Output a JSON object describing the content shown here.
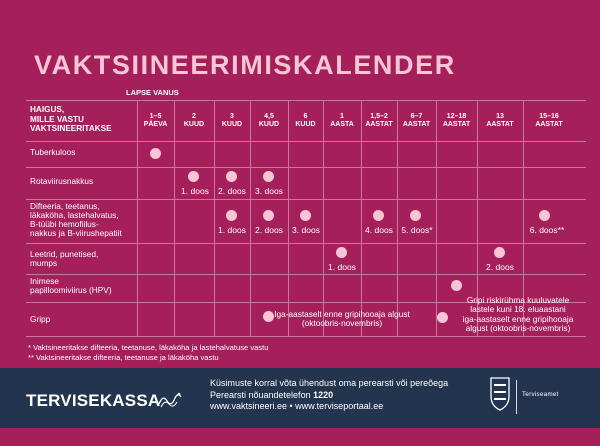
{
  "title": "VAKTSIINEERIMISKALENDER",
  "age_label": "LAPSE VANUS",
  "disease_header": [
    "HAIGUS,",
    "MILLE VASTU",
    "VAKTSINEERITAKSE"
  ],
  "ages": [
    {
      "num": "1–5",
      "unit": "PÄEVA"
    },
    {
      "num": "2",
      "unit": "KUUD"
    },
    {
      "num": "3",
      "unit": "KUUD"
    },
    {
      "num": "4,5",
      "unit": "KUUD"
    },
    {
      "num": "6",
      "unit": "KUUD"
    },
    {
      "num": "1",
      "unit": "AASTA"
    },
    {
      "num": "1,5–2",
      "unit": "AASTAT"
    },
    {
      "num": "6–7",
      "unit": "AASTAT"
    },
    {
      "num": "12–18",
      "unit": "AASTAT"
    },
    {
      "num": "13",
      "unit": "AASTAT"
    },
    {
      "num": "15–16",
      "unit": "AASTAT"
    }
  ],
  "diseases": [
    {
      "id": "tuberkuloos",
      "lines": [
        "Tuberkuloos"
      ]
    },
    {
      "id": "rotaviirus",
      "lines": [
        "Rotaviirusnakkus"
      ]
    },
    {
      "id": "difteeria",
      "lines": [
        "Difteeria, teetanus,",
        "läkaköha, lastehalvatus,",
        "B-tüübi hemofiilus-",
        "nakkus ja B-viirushepatiit"
      ]
    },
    {
      "id": "leetrid",
      "lines": [
        "Leetrid, punetised,",
        "mumps"
      ]
    },
    {
      "id": "hpv",
      "lines": [
        "Inimese",
        "papilloomiviirus (HPV)"
      ]
    },
    {
      "id": "gripp",
      "lines": [
        "Gripp"
      ]
    }
  ],
  "doses": {
    "rotaviirus": [
      "1. doos",
      "2. doos",
      "3. doos"
    ],
    "difteeria": [
      "1. doos",
      "2. doos",
      "3. doos",
      "4. doos",
      "5. doos*",
      "6. doos**"
    ],
    "leetrid": [
      "1. doos",
      "2. doos"
    ]
  },
  "gripp": {
    "note_left": [
      "Iga-aastaselt enne gripihooaja algust",
      "(oktoobris-novembris)"
    ],
    "note_right": [
      "Gripi riskirühma kuuluvatele",
      "lastele kuni 18. eluaastani",
      "iga-aastaselt enne gripihooaja",
      "algust (oktoobris-novembris)"
    ]
  },
  "footnotes": [
    "* Vaktsineeritakse difteeria, teetanuse, läkaköha ja lastehalvatuse vastu",
    "** Vaktsineeritakse difteeria, teetanuse ja läkaköha vastu"
  ],
  "footer": {
    "brand": "TERVISEKASSA",
    "contact_line1": "Küsimuste korral võta ühendust oma perearsti või pereõega",
    "contact_line2_prefix": "Perearsti nõuandetelefon ",
    "phone": "1220",
    "contact_line3": "www.vaktsineeri.ee • www.terviseportaal.ee",
    "agency": "Terviseamet"
  },
  "colors": {
    "background": "#a51f5a",
    "accent_pink": "#f6c6d5",
    "footer": "#23344f"
  },
  "icons": [
    "dot-marker",
    "tervisekassa-wave-icon",
    "estonian-lions-crest-icon"
  ]
}
